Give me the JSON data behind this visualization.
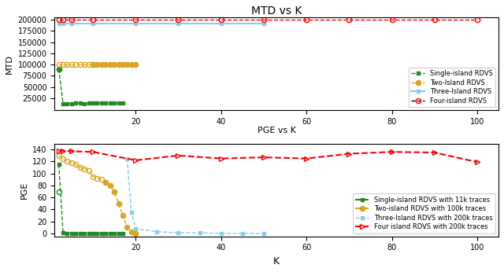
{
  "title_top": "MTD vs K",
  "xlabel_mid": "PGE vs K",
  "xlabel_bot": "K",
  "ylabel_top": "MTD",
  "ylabel_bottom": "PGE",
  "mtd_green_x": [
    2,
    3,
    4,
    5,
    6,
    7,
    8,
    9,
    10,
    11,
    12,
    13,
    14,
    15,
    16,
    17
  ],
  "mtd_green_y": [
    90000,
    13000,
    12000,
    13000,
    14000,
    14000,
    13000,
    13500,
    14000,
    14500,
    14000,
    15000,
    15000,
    15000,
    14000,
    14000
  ],
  "mtd_green_open_x": [
    2
  ],
  "mtd_green_open_y": [
    90000
  ],
  "mtd_yellow_filled_x": [
    10,
    11,
    12,
    13,
    14,
    15,
    16,
    17,
    18,
    19,
    20
  ],
  "mtd_yellow_filled_y": [
    100000,
    100000,
    100000,
    100000,
    100000,
    100000,
    100000,
    100000,
    100000,
    100000,
    100000
  ],
  "mtd_yellow_open_x": [
    2,
    3,
    4,
    5,
    6,
    7,
    8,
    9,
    10
  ],
  "mtd_yellow_open_y": [
    100000,
    100000,
    100000,
    100000,
    100000,
    100000,
    100000,
    100000,
    100000
  ],
  "mtd_yellow_line_x": [
    2,
    3,
    4,
    5,
    6,
    7,
    8,
    9,
    10,
    11,
    12,
    13,
    14,
    15,
    16,
    17,
    18,
    19,
    20
  ],
  "mtd_yellow_line_y": [
    100000,
    100000,
    100000,
    100000,
    100000,
    100000,
    100000,
    100000,
    100000,
    100000,
    100000,
    100000,
    100000,
    100000,
    100000,
    100000,
    100000,
    100000,
    100000
  ],
  "mtd_cyan_x": [
    2,
    3,
    5,
    10,
    20,
    30,
    40,
    50
  ],
  "mtd_cyan_y": [
    192000,
    192000,
    192000,
    192000,
    192000,
    192000,
    192000,
    192000
  ],
  "mtd_red_x": [
    2,
    3,
    5,
    10,
    20,
    30,
    40,
    50,
    60,
    70,
    80,
    90,
    100
  ],
  "mtd_red_y": [
    200000,
    200000,
    200000,
    200000,
    200000,
    200000,
    200000,
    200000,
    200000,
    200000,
    200000,
    200000,
    200000
  ],
  "pge_green_x": [
    2,
    3,
    4,
    5,
    6,
    7,
    8,
    9,
    10,
    11,
    12,
    13,
    14,
    15,
    16,
    17
  ],
  "pge_green_y": [
    115,
    1,
    0,
    0,
    0,
    0,
    0,
    0,
    0,
    0,
    0,
    0,
    0,
    0,
    0,
    0
  ],
  "pge_green_open_x": [
    2
  ],
  "pge_green_open_y": [
    70
  ],
  "pge_yellow_line_x": [
    2,
    3,
    4,
    5,
    6,
    7,
    8,
    9,
    10,
    11,
    12,
    13,
    14,
    15,
    16,
    17,
    18,
    19,
    20
  ],
  "pge_yellow_line_y": [
    130,
    125,
    120,
    118,
    115,
    110,
    108,
    105,
    95,
    92,
    90,
    85,
    80,
    70,
    50,
    30,
    10,
    3,
    0
  ],
  "pge_yellow_open_x": [
    2,
    3,
    4,
    5,
    6,
    7,
    8,
    9,
    10,
    11,
    12
  ],
  "pge_yellow_open_y": [
    130,
    125,
    120,
    118,
    115,
    110,
    108,
    105,
    95,
    92,
    90
  ],
  "pge_yellow_filled_x": [
    13,
    14,
    15,
    16,
    17,
    18,
    19,
    20
  ],
  "pge_yellow_filled_y": [
    85,
    80,
    70,
    50,
    30,
    10,
    3,
    0
  ],
  "pge_cyan_x": [
    18,
    19,
    20,
    25,
    30,
    35,
    40,
    45,
    50
  ],
  "pge_cyan_y": [
    125,
    35,
    8,
    3,
    1,
    1,
    0,
    0,
    0
  ],
  "pge_red_x": [
    2,
    3,
    5,
    10,
    20,
    30,
    40,
    50,
    60,
    70,
    80,
    90,
    100
  ],
  "pge_red_y": [
    138,
    138,
    137,
    136,
    122,
    130,
    125,
    127,
    125,
    133,
    136,
    135,
    119
  ],
  "mtd_ylim": [
    -2000,
    205000
  ],
  "mtd_yticks": [
    25000,
    50000,
    75000,
    100000,
    125000,
    150000,
    175000,
    200000
  ],
  "pge_ylim": [
    -5,
    150
  ],
  "pge_yticks": [
    0,
    20,
    40,
    60,
    80,
    100,
    120,
    140
  ],
  "xlim": [
    1,
    105
  ],
  "xticks": [
    20,
    40,
    60,
    80,
    100
  ],
  "color_green": "#228B22",
  "color_yellow": "#DAA520",
  "color_cyan": "#87CEEB",
  "color_red": "#FF0000",
  "legend_top": [
    "Single-island RDVS",
    "Two-Island RDVS",
    "Three-Island RDVS",
    "Four-island RDVS"
  ],
  "legend_bottom": [
    "Single-island RDVS with 11k traces",
    "Two-island RDVS with 100k traces",
    "Three-Island RDVS with 200k traces",
    "Four island RDVS with 200k traces"
  ]
}
